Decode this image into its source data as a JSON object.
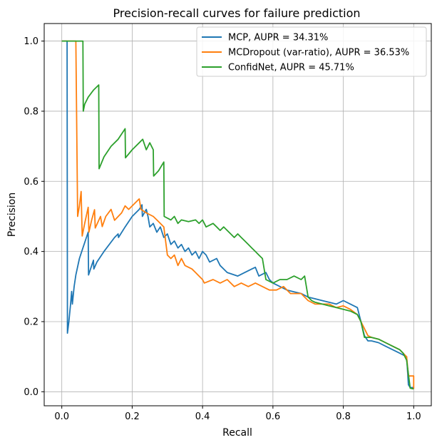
{
  "chart_data": {
    "type": "line",
    "title": "Precision-recall curves for failure prediction",
    "xlabel": "Recall",
    "ylabel": "Precision",
    "xlim": [
      -0.05,
      1.05
    ],
    "ylim": [
      -0.04,
      1.05
    ],
    "xticks": [
      0.0,
      0.2,
      0.4,
      0.6,
      0.8,
      1.0
    ],
    "xtick_labels": [
      "0.0",
      "0.2",
      "0.4",
      "0.6",
      "0.8",
      "1.0"
    ],
    "yticks": [
      0.0,
      0.2,
      0.4,
      0.6,
      0.8,
      1.0
    ],
    "ytick_labels": [
      "0.0",
      "0.2",
      "0.4",
      "0.6",
      "0.8",
      "1.0"
    ],
    "grid": true,
    "legend_position": "top-right",
    "series": [
      {
        "name": "MCP, AUPR = 34.31%",
        "color": "#1f77b4",
        "points": [
          [
            0.0,
            1.0
          ],
          [
            0.015,
            1.0
          ],
          [
            0.016,
            0.167
          ],
          [
            0.02,
            0.2
          ],
          [
            0.025,
            0.25
          ],
          [
            0.028,
            0.286
          ],
          [
            0.03,
            0.25
          ],
          [
            0.035,
            0.3
          ],
          [
            0.04,
            0.333
          ],
          [
            0.05,
            0.38
          ],
          [
            0.06,
            0.41
          ],
          [
            0.07,
            0.44
          ],
          [
            0.075,
            0.455
          ],
          [
            0.076,
            0.333
          ],
          [
            0.085,
            0.36
          ],
          [
            0.09,
            0.375
          ],
          [
            0.091,
            0.35
          ],
          [
            0.1,
            0.37
          ],
          [
            0.12,
            0.4
          ],
          [
            0.15,
            0.44
          ],
          [
            0.16,
            0.45
          ],
          [
            0.161,
            0.44
          ],
          [
            0.18,
            0.47
          ],
          [
            0.2,
            0.5
          ],
          [
            0.22,
            0.52
          ],
          [
            0.228,
            0.533
          ],
          [
            0.229,
            0.5
          ],
          [
            0.24,
            0.52
          ],
          [
            0.245,
            0.5
          ],
          [
            0.25,
            0.47
          ],
          [
            0.26,
            0.48
          ],
          [
            0.27,
            0.455
          ],
          [
            0.28,
            0.47
          ],
          [
            0.29,
            0.44
          ],
          [
            0.3,
            0.45
          ],
          [
            0.31,
            0.42
          ],
          [
            0.32,
            0.43
          ],
          [
            0.33,
            0.41
          ],
          [
            0.34,
            0.42
          ],
          [
            0.35,
            0.4
          ],
          [
            0.36,
            0.41
          ],
          [
            0.37,
            0.39
          ],
          [
            0.38,
            0.4
          ],
          [
            0.39,
            0.38
          ],
          [
            0.4,
            0.4
          ],
          [
            0.41,
            0.39
          ],
          [
            0.42,
            0.37
          ],
          [
            0.44,
            0.38
          ],
          [
            0.45,
            0.36
          ],
          [
            0.47,
            0.34
          ],
          [
            0.5,
            0.33
          ],
          [
            0.52,
            0.34
          ],
          [
            0.54,
            0.35
          ],
          [
            0.55,
            0.355
          ],
          [
            0.56,
            0.33
          ],
          [
            0.58,
            0.34
          ],
          [
            0.59,
            0.32
          ],
          [
            0.6,
            0.31
          ],
          [
            0.62,
            0.3
          ],
          [
            0.64,
            0.29
          ],
          [
            0.66,
            0.285
          ],
          [
            0.68,
            0.28
          ],
          [
            0.7,
            0.27
          ],
          [
            0.72,
            0.265
          ],
          [
            0.74,
            0.26
          ],
          [
            0.76,
            0.255
          ],
          [
            0.78,
            0.25
          ],
          [
            0.8,
            0.26
          ],
          [
            0.82,
            0.25
          ],
          [
            0.84,
            0.24
          ],
          [
            0.85,
            0.2
          ],
          [
            0.86,
            0.16
          ],
          [
            0.87,
            0.145
          ],
          [
            0.88,
            0.145
          ],
          [
            0.9,
            0.14
          ],
          [
            0.92,
            0.13
          ],
          [
            0.94,
            0.12
          ],
          [
            0.96,
            0.11
          ],
          [
            0.97,
            0.105
          ],
          [
            0.98,
            0.1
          ],
          [
            0.985,
            0.02
          ],
          [
            0.99,
            0.012
          ],
          [
            1.0,
            0.012
          ]
        ]
      },
      {
        "name": "MCDropout (var-ratio), AUPR = 36.53%",
        "color": "#ff7f0e",
        "points": [
          [
            0.0,
            1.0
          ],
          [
            0.04,
            1.0
          ],
          [
            0.045,
            0.5
          ],
          [
            0.05,
            0.53
          ],
          [
            0.055,
            0.571
          ],
          [
            0.058,
            0.444
          ],
          [
            0.065,
            0.48
          ],
          [
            0.075,
            0.526
          ],
          [
            0.077,
            0.455
          ],
          [
            0.085,
            0.49
          ],
          [
            0.093,
            0.519
          ],
          [
            0.095,
            0.467
          ],
          [
            0.11,
            0.5
          ],
          [
            0.115,
            0.471
          ],
          [
            0.125,
            0.5
          ],
          [
            0.14,
            0.52
          ],
          [
            0.15,
            0.489
          ],
          [
            0.17,
            0.51
          ],
          [
            0.18,
            0.53
          ],
          [
            0.19,
            0.52
          ],
          [
            0.2,
            0.53
          ],
          [
            0.22,
            0.55
          ],
          [
            0.225,
            0.52
          ],
          [
            0.24,
            0.51
          ],
          [
            0.26,
            0.5
          ],
          [
            0.27,
            0.49
          ],
          [
            0.28,
            0.48
          ],
          [
            0.29,
            0.47
          ],
          [
            0.3,
            0.39
          ],
          [
            0.31,
            0.38
          ],
          [
            0.32,
            0.39
          ],
          [
            0.33,
            0.36
          ],
          [
            0.34,
            0.38
          ],
          [
            0.35,
            0.36
          ],
          [
            0.37,
            0.35
          ],
          [
            0.38,
            0.34
          ],
          [
            0.39,
            0.33
          ],
          [
            0.4,
            0.32
          ],
          [
            0.405,
            0.31
          ],
          [
            0.43,
            0.32
          ],
          [
            0.45,
            0.31
          ],
          [
            0.47,
            0.32
          ],
          [
            0.49,
            0.3
          ],
          [
            0.51,
            0.31
          ],
          [
            0.53,
            0.3
          ],
          [
            0.55,
            0.31
          ],
          [
            0.57,
            0.3
          ],
          [
            0.59,
            0.29
          ],
          [
            0.61,
            0.29
          ],
          [
            0.63,
            0.3
          ],
          [
            0.64,
            0.29
          ],
          [
            0.65,
            0.28
          ],
          [
            0.68,
            0.28
          ],
          [
            0.7,
            0.26
          ],
          [
            0.72,
            0.25
          ],
          [
            0.74,
            0.25
          ],
          [
            0.76,
            0.25
          ],
          [
            0.78,
            0.24
          ],
          [
            0.8,
            0.245
          ],
          [
            0.82,
            0.235
          ],
          [
            0.84,
            0.22
          ],
          [
            0.85,
            0.2
          ],
          [
            0.86,
            0.18
          ],
          [
            0.87,
            0.16
          ],
          [
            0.88,
            0.155
          ],
          [
            0.9,
            0.15
          ],
          [
            0.92,
            0.14
          ],
          [
            0.94,
            0.13
          ],
          [
            0.96,
            0.12
          ],
          [
            0.97,
            0.11
          ],
          [
            0.98,
            0.1
          ],
          [
            0.985,
            0.045
          ],
          [
            1.0,
            0.045
          ],
          [
            1.0,
            0.008
          ]
        ]
      },
      {
        "name": "ConfidNet, AUPR = 45.71%",
        "color": "#2ca02c",
        "points": [
          [
            0.0,
            1.0
          ],
          [
            0.06,
            1.0
          ],
          [
            0.061,
            0.8
          ],
          [
            0.065,
            0.82
          ],
          [
            0.075,
            0.84
          ],
          [
            0.09,
            0.86
          ],
          [
            0.105,
            0.875
          ],
          [
            0.106,
            0.636
          ],
          [
            0.12,
            0.67
          ],
          [
            0.14,
            0.7
          ],
          [
            0.16,
            0.72
          ],
          [
            0.18,
            0.75
          ],
          [
            0.181,
            0.667
          ],
          [
            0.2,
            0.69
          ],
          [
            0.22,
            0.71
          ],
          [
            0.23,
            0.72
          ],
          [
            0.24,
            0.69
          ],
          [
            0.25,
            0.71
          ],
          [
            0.26,
            0.69
          ],
          [
            0.261,
            0.615
          ],
          [
            0.275,
            0.63
          ],
          [
            0.29,
            0.655
          ],
          [
            0.291,
            0.5
          ],
          [
            0.31,
            0.49
          ],
          [
            0.32,
            0.5
          ],
          [
            0.33,
            0.48
          ],
          [
            0.34,
            0.49
          ],
          [
            0.36,
            0.485
          ],
          [
            0.38,
            0.49
          ],
          [
            0.39,
            0.48
          ],
          [
            0.4,
            0.49
          ],
          [
            0.41,
            0.47
          ],
          [
            0.43,
            0.48
          ],
          [
            0.44,
            0.47
          ],
          [
            0.45,
            0.46
          ],
          [
            0.46,
            0.47
          ],
          [
            0.47,
            0.46
          ],
          [
            0.48,
            0.45
          ],
          [
            0.49,
            0.44
          ],
          [
            0.5,
            0.45
          ],
          [
            0.51,
            0.44
          ],
          [
            0.52,
            0.43
          ],
          [
            0.53,
            0.42
          ],
          [
            0.54,
            0.41
          ],
          [
            0.55,
            0.4
          ],
          [
            0.56,
            0.39
          ],
          [
            0.57,
            0.38
          ],
          [
            0.58,
            0.32
          ],
          [
            0.6,
            0.31
          ],
          [
            0.62,
            0.32
          ],
          [
            0.64,
            0.32
          ],
          [
            0.66,
            0.33
          ],
          [
            0.68,
            0.32
          ],
          [
            0.69,
            0.33
          ],
          [
            0.7,
            0.27
          ],
          [
            0.71,
            0.26
          ],
          [
            0.72,
            0.255
          ],
          [
            0.74,
            0.25
          ],
          [
            0.76,
            0.245
          ],
          [
            0.78,
            0.24
          ],
          [
            0.8,
            0.235
          ],
          [
            0.82,
            0.23
          ],
          [
            0.84,
            0.22
          ],
          [
            0.85,
            0.2
          ],
          [
            0.86,
            0.155
          ],
          [
            0.88,
            0.155
          ],
          [
            0.9,
            0.15
          ],
          [
            0.92,
            0.14
          ],
          [
            0.94,
            0.13
          ],
          [
            0.96,
            0.12
          ],
          [
            0.97,
            0.11
          ],
          [
            0.98,
            0.09
          ],
          [
            0.99,
            0.01
          ],
          [
            1.0,
            0.008
          ]
        ]
      }
    ]
  }
}
